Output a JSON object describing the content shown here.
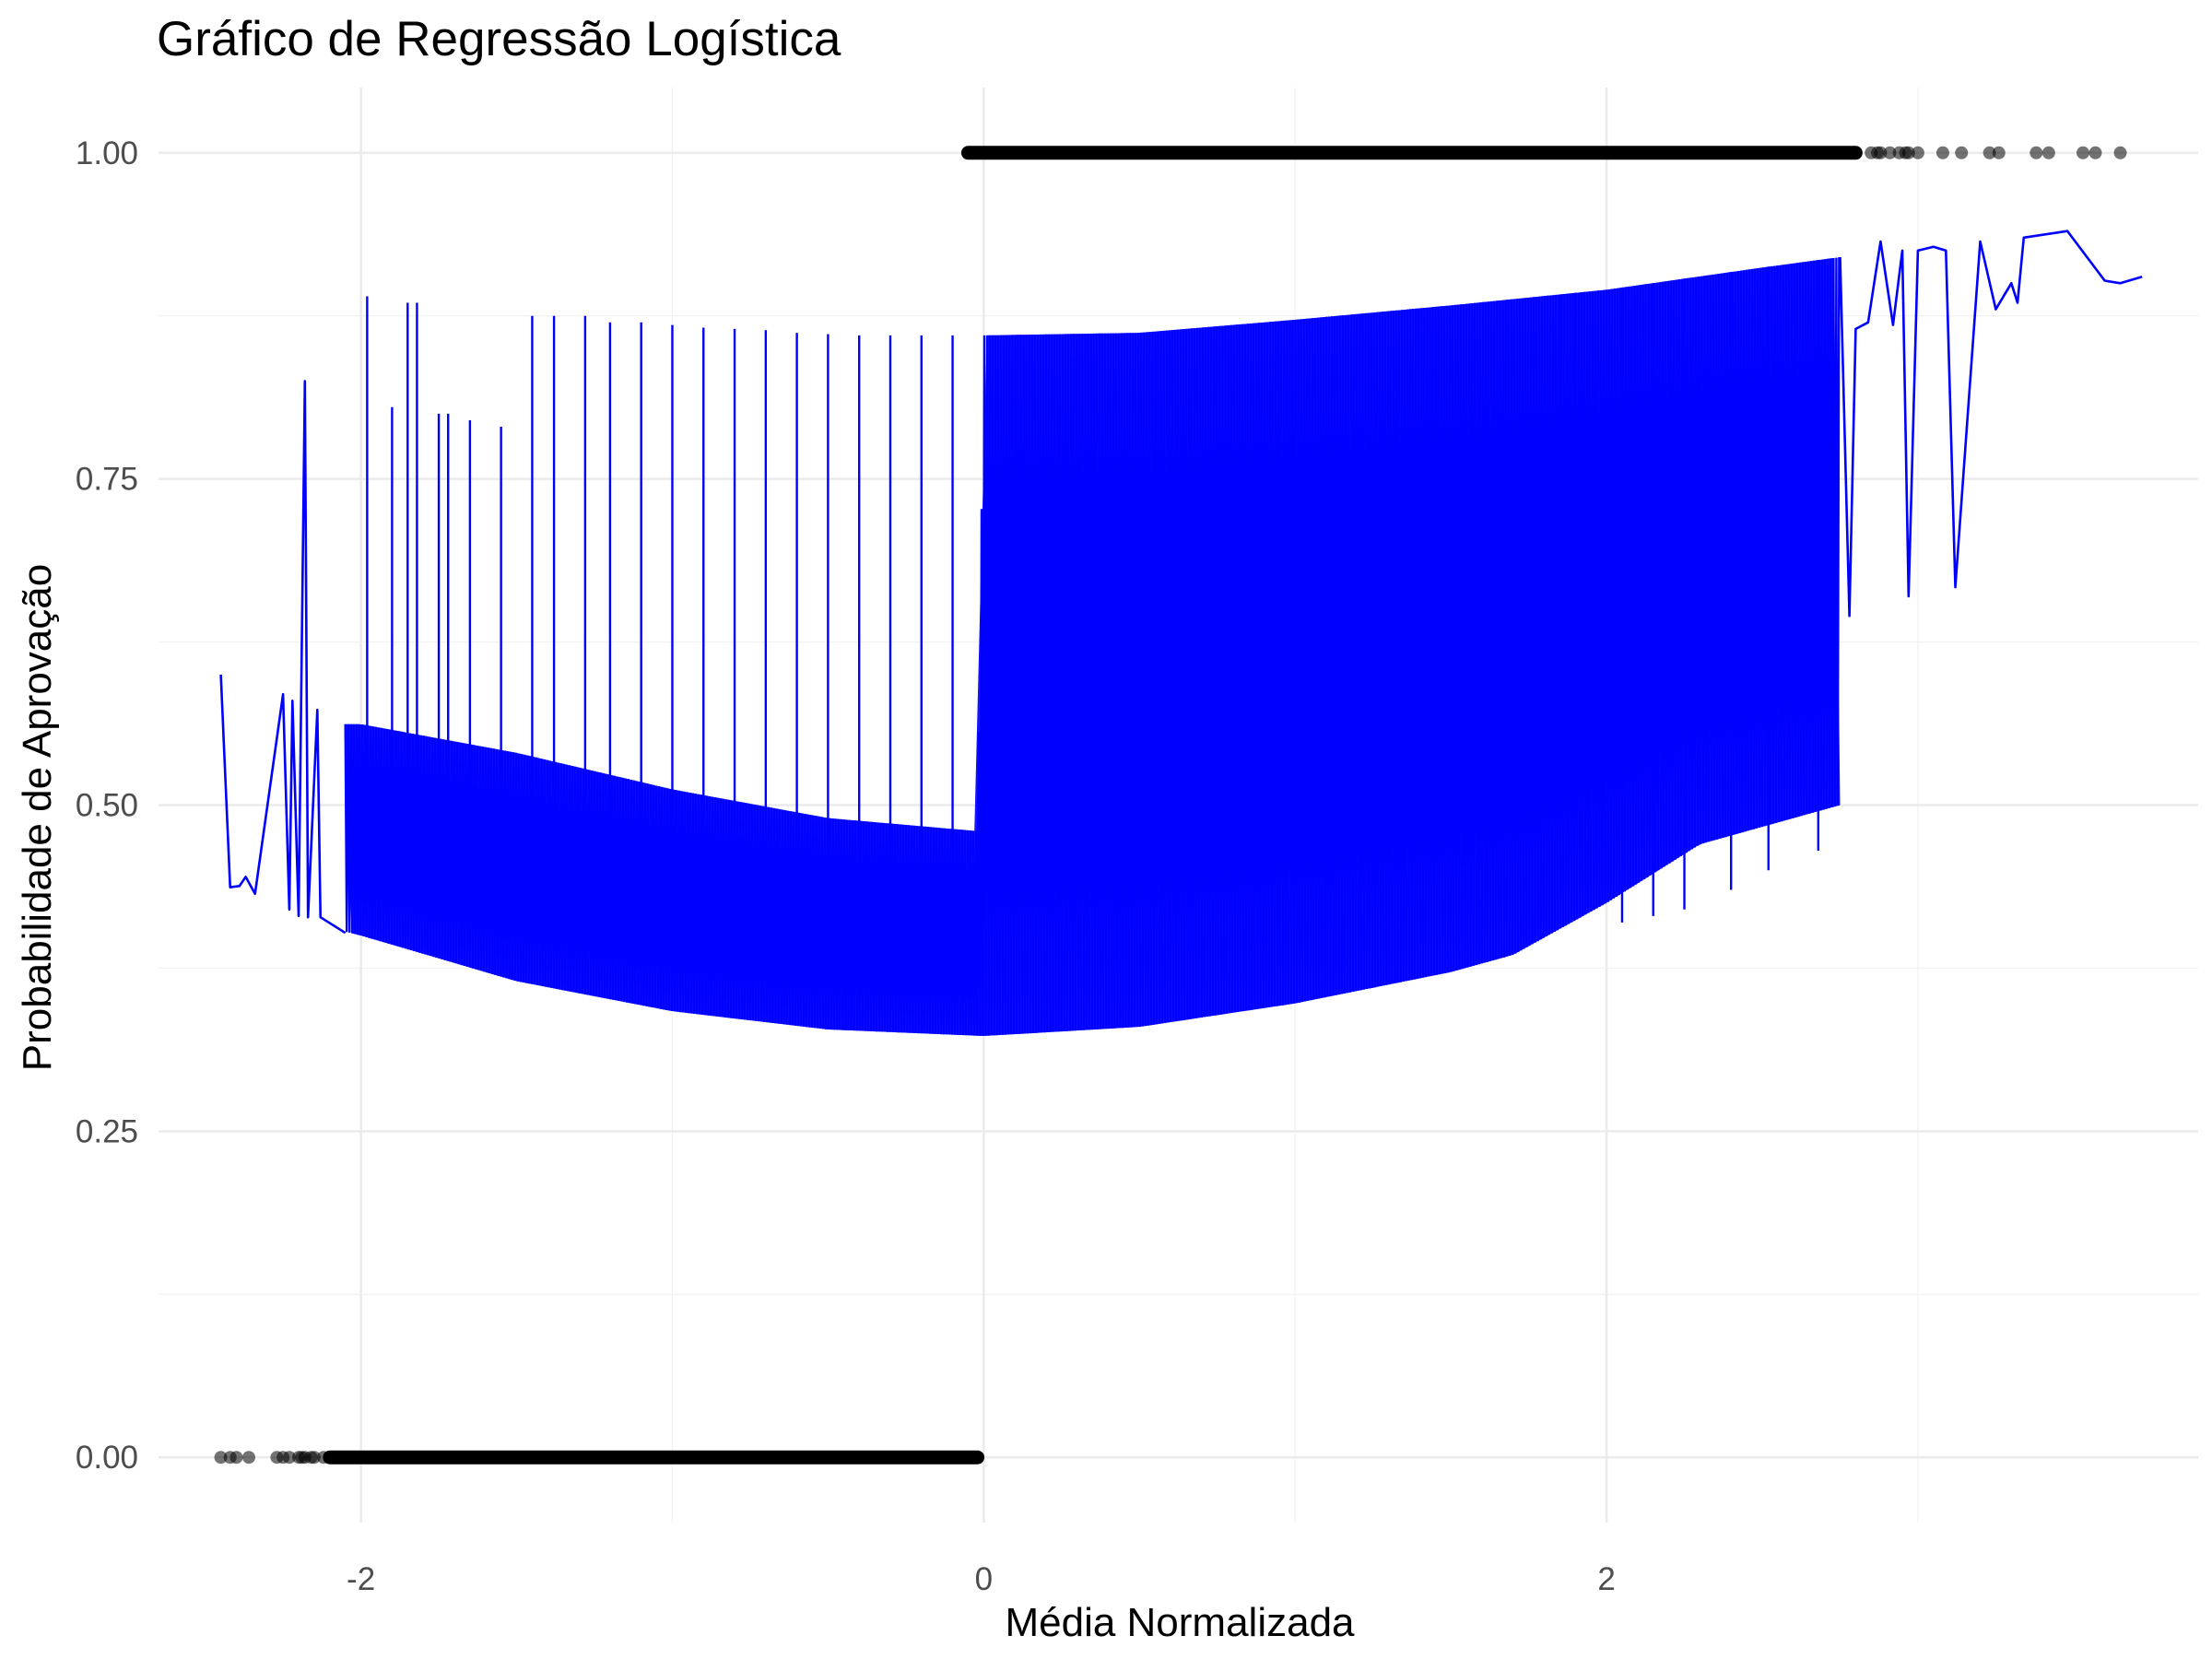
{
  "chart_data": {
    "type": "line",
    "title": "Gráfico de Regressão Logística",
    "xlabel": "Média Normalizada",
    "ylabel": "Probabilidade de Aprovação",
    "xlim": [
      -2.65,
      3.9
    ],
    "ylim": [
      -0.05,
      1.05
    ],
    "x_ticks": [
      -2,
      0,
      2
    ],
    "x_tick_labels": [
      "-2",
      "0",
      "2"
    ],
    "y_ticks": [
      0,
      0.25,
      0.5,
      0.75,
      1
    ],
    "y_tick_labels": [
      "0.00",
      "0.25",
      "0.50",
      "0.75",
      "1.00"
    ],
    "grid": true,
    "legend": "none",
    "colors": {
      "line": "#0000ff",
      "points": "#000000",
      "grid": "#ebebeb",
      "tick_text": "#4d4d4d"
    },
    "series": [
      {
        "type": "scatter",
        "values_y": 0,
        "dense_range_x": [
          -2.1,
          -0.02
        ],
        "sparse_x": [
          -2.45,
          -2.42,
          -2.4,
          -2.36,
          -2.27,
          -2.25,
          -2.23,
          -2.2,
          -2.19,
          -2.18,
          -2.16,
          -2.15,
          -2.12
        ]
      },
      {
        "type": "scatter",
        "values_y": 1,
        "dense_range_x": [
          -0.05,
          2.8
        ],
        "sparse_x": [
          2.85,
          2.87,
          2.88,
          2.91,
          2.94,
          2.96,
          2.97,
          3.0,
          3.08,
          3.14,
          3.23,
          3.26,
          3.38,
          3.42,
          3.53,
          3.57,
          3.65
        ]
      },
      {
        "type": "line",
        "lower_envelope": [
          [
            -2.25,
            0.415
          ],
          [
            -2.0,
            0.4
          ],
          [
            -1.5,
            0.365
          ],
          [
            -1.0,
            0.342
          ],
          [
            -0.5,
            0.328
          ],
          [
            0.0,
            0.323
          ],
          [
            0.5,
            0.33
          ],
          [
            1.0,
            0.348
          ],
          [
            1.5,
            0.372
          ],
          [
            2.0,
            0.405
          ],
          [
            2.3,
            0.43
          ]
        ],
        "upper_envelope": [
          [
            -2.0,
            0.562
          ],
          [
            -1.5,
            0.54
          ],
          [
            -1.0,
            0.512
          ],
          [
            -0.5,
            0.49
          ],
          [
            -0.02,
            0.48
          ],
          [
            0.0,
            0.86
          ],
          [
            0.5,
            0.862
          ],
          [
            1.0,
            0.872
          ],
          [
            1.5,
            0.883
          ],
          [
            2.0,
            0.895
          ],
          [
            2.5,
            0.912
          ],
          [
            2.75,
            0.92
          ]
        ],
        "left_tail": [
          [
            -2.45,
            0.6
          ],
          [
            -2.42,
            0.437
          ],
          [
            -2.39,
            0.438
          ],
          [
            -2.37,
            0.445
          ],
          [
            -2.34,
            0.432
          ],
          [
            -2.25,
            0.585
          ],
          [
            -2.23,
            0.42
          ],
          [
            -2.22,
            0.58
          ],
          [
            -2.2,
            0.415
          ],
          [
            -2.18,
            0.825
          ],
          [
            -2.17,
            0.414
          ],
          [
            -2.14,
            0.573
          ],
          [
            -2.13,
            0.414
          ],
          [
            -2.05,
            0.402
          ]
        ],
        "right_tail": [
          [
            2.75,
            0.92
          ],
          [
            2.78,
            0.645
          ],
          [
            2.8,
            0.865
          ],
          [
            2.84,
            0.87
          ],
          [
            2.88,
            0.932
          ],
          [
            2.92,
            0.868
          ],
          [
            2.95,
            0.925
          ],
          [
            2.97,
            0.66
          ],
          [
            3.0,
            0.925
          ],
          [
            3.05,
            0.928
          ],
          [
            3.09,
            0.925
          ],
          [
            3.12,
            0.667
          ],
          [
            3.2,
            0.932
          ],
          [
            3.25,
            0.88
          ],
          [
            3.3,
            0.9
          ],
          [
            3.32,
            0.885
          ],
          [
            3.34,
            0.935
          ],
          [
            3.48,
            0.94
          ],
          [
            3.6,
            0.902
          ],
          [
            3.65,
            0.9
          ],
          [
            3.72,
            0.905
          ]
        ],
        "spikes": [
          [
            -1.98,
            0.89
          ],
          [
            -1.9,
            0.805
          ],
          [
            -1.85,
            0.885
          ],
          [
            -1.82,
            0.885
          ],
          [
            -1.75,
            0.8
          ],
          [
            -1.72,
            0.8
          ],
          [
            -1.65,
            0.795
          ],
          [
            -1.55,
            0.79
          ],
          [
            -1.45,
            0.875
          ],
          [
            -1.38,
            0.875
          ],
          [
            -1.28,
            0.875
          ],
          [
            -1.2,
            0.87
          ],
          [
            -1.1,
            0.87
          ],
          [
            -1.0,
            0.868
          ],
          [
            -0.9,
            0.866
          ],
          [
            -0.8,
            0.865
          ],
          [
            -0.7,
            0.864
          ],
          [
            -0.6,
            0.862
          ],
          [
            -0.5,
            0.861
          ],
          [
            -0.4,
            0.86
          ],
          [
            -0.3,
            0.86
          ],
          [
            -0.2,
            0.86
          ],
          [
            -0.1,
            0.86
          ],
          [
            1.85,
            0.54
          ],
          [
            1.9,
            0.545
          ],
          [
            2.05,
            0.41
          ],
          [
            2.15,
            0.415
          ],
          [
            2.25,
            0.42
          ],
          [
            2.4,
            0.435
          ],
          [
            2.52,
            0.45
          ],
          [
            2.68,
            0.465
          ]
        ]
      }
    ]
  }
}
